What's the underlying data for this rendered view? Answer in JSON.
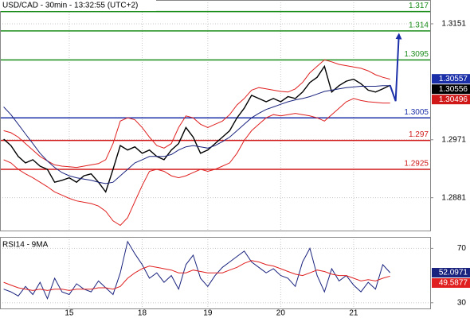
{
  "chart_data": [
    {
      "type": "line",
      "title": "USD/CAD - 30min - 13:32:55 (UTC+2)",
      "categories": [
        null,
        null,
        null,
        null,
        null,
        null,
        null,
        null,
        null,
        "15",
        null,
        null,
        null,
        null,
        null,
        null,
        null,
        null,
        null,
        "18",
        null,
        null,
        null,
        null,
        null,
        null,
        null,
        null,
        "19",
        null,
        null,
        null,
        null,
        null,
        null,
        null,
        null,
        null,
        "20",
        null,
        null,
        null,
        null,
        null,
        null,
        null,
        null,
        null,
        "21",
        null,
        null,
        null,
        null,
        null
      ],
      "ylim": [
        1.283,
        1.3188
      ],
      "yticks": [
        1.3151,
        1.2971,
        1.2881
      ],
      "grid": true,
      "series": [
        {
          "name": "USD/CAD",
          "color": "#000000",
          "values": [
            1.2972,
            1.2962,
            1.2945,
            1.2935,
            1.294,
            1.293,
            1.2925,
            1.2905,
            1.2908,
            1.2912,
            1.2905,
            1.2915,
            1.2918,
            1.2905,
            1.289,
            1.2925,
            1.2962,
            1.2955,
            1.296,
            1.295,
            1.2955,
            1.2945,
            1.294,
            1.2955,
            1.2965,
            1.299,
            1.2975,
            1.295,
            1.2955,
            1.2965,
            1.2975,
            1.2985,
            1.3005,
            1.302,
            1.304,
            1.3035,
            1.303,
            1.3035,
            1.303,
            1.3038,
            1.3035,
            1.3045,
            1.306,
            1.3068,
            1.3085,
            1.3045,
            1.3055,
            1.3062,
            1.3065,
            1.3058,
            1.3048,
            1.3045,
            1.305,
            1.30556
          ]
        },
        {
          "name": "Upper Band",
          "color": "#e02020",
          "values": [
            1.2985,
            1.2982,
            1.2975,
            1.2965,
            1.2955,
            1.2945,
            1.2938,
            1.2932,
            1.293,
            1.2929,
            1.2928,
            1.293,
            1.2932,
            1.2934,
            1.294,
            1.2965,
            1.3,
            1.3005,
            1.3002,
            1.299,
            1.2975,
            1.2962,
            1.2958,
            1.2965,
            1.299,
            1.3008,
            1.3005,
            1.2995,
            1.299,
            1.2995,
            1.3,
            1.301,
            1.3025,
            1.3035,
            1.3048,
            1.3052,
            1.305,
            1.3048,
            1.3046,
            1.3045,
            1.305,
            1.306,
            1.3075,
            1.3085,
            1.3095,
            1.3092,
            1.3088,
            1.3086,
            1.3084,
            1.3082,
            1.3078,
            1.3072,
            1.3068,
            1.3065
          ]
        },
        {
          "name": "Lower Band",
          "color": "#e02020",
          "values": [
            1.294,
            1.2935,
            1.2925,
            1.2918,
            1.2912,
            1.2905,
            1.2898,
            1.289,
            1.2885,
            1.288,
            1.2876,
            1.2874,
            1.2872,
            1.2868,
            1.286,
            1.2845,
            1.2838,
            1.285,
            1.2875,
            1.29,
            1.2922,
            1.2925,
            1.2922,
            1.2915,
            1.2912,
            1.2915,
            1.292,
            1.2925,
            1.2922,
            1.2925,
            1.293,
            1.2935,
            1.295,
            1.297,
            1.2985,
            1.2995,
            1.3005,
            1.301,
            1.3008,
            1.301,
            1.3012,
            1.301,
            1.3008,
            1.3005,
            1.3,
            1.301,
            1.302,
            1.303,
            1.3035,
            1.3032,
            1.303,
            1.3029,
            1.3028,
            1.3028
          ]
        },
        {
          "name": "MA",
          "color": "#1a237e",
          "values": [
            1.3022,
            1.301,
            1.2995,
            1.298,
            1.2965,
            1.295,
            1.2938,
            1.2928,
            1.292,
            1.2915,
            1.2912,
            1.291,
            1.2908,
            1.2905,
            1.2903,
            1.2905,
            1.2915,
            1.2925,
            1.2935,
            1.294,
            1.2945,
            1.2945,
            1.2945,
            1.2948,
            1.2955,
            1.296,
            1.2962,
            1.296,
            1.2958,
            1.2962,
            1.2968,
            1.2975,
            1.2985,
            1.2995,
            1.3005,
            1.3012,
            1.3018,
            1.3022,
            1.3026,
            1.303,
            1.3033,
            1.3035,
            1.3038,
            1.3042,
            1.3046,
            1.3048,
            1.305,
            1.3052,
            1.3053,
            1.3054,
            1.3054,
            1.3054,
            1.3055,
            1.3055
          ]
        }
      ],
      "levels": [
        {
          "value": 1.317,
          "color": "#1a8c1a"
        },
        {
          "value": 1.314,
          "color": "#1a8c1a"
        },
        {
          "value": 1.3095,
          "color": "#1a8c1a"
        },
        {
          "value": 1.3005,
          "color": "#1a2fa8"
        },
        {
          "value": 1.297,
          "color": "#d01818"
        },
        {
          "value": 1.2925,
          "color": "#d01818"
        }
      ],
      "price_markers": [
        {
          "value": 1.30557,
          "color": "#1a2fa8"
        },
        {
          "value": 1.30556,
          "color": "#000000"
        },
        {
          "value": 1.30496,
          "color": "#d01818"
        }
      ],
      "forecast": {
        "color": "#1a2fa8",
        "values": [
          1.30556,
          1.3031,
          1.3132
        ]
      }
    },
    {
      "type": "line",
      "title": "RSI14 - 9MA",
      "ylim": [
        25.8,
        78.4
      ],
      "yticks": [
        70,
        30
      ],
      "series": [
        {
          "name": "RSI14",
          "color": "#1a237e",
          "values": [
            40,
            38,
            35,
            42,
            36,
            45,
            33,
            48,
            38,
            36,
            44,
            40,
            38,
            46,
            41,
            36,
            52,
            75,
            66,
            58,
            48,
            52,
            45,
            50,
            40,
            58,
            65,
            48,
            42,
            50,
            56,
            60,
            64,
            68,
            60,
            56,
            52,
            55,
            50,
            48,
            42,
            60,
            70,
            50,
            38,
            55,
            46,
            50,
            43,
            38,
            45,
            40,
            58,
            52.0971
          ]
        },
        {
          "name": "9MA",
          "color": "#e02020",
          "values": [
            45,
            43,
            41,
            40,
            39,
            40,
            39,
            40,
            40,
            39,
            40,
            40,
            40,
            41,
            41,
            40,
            42,
            48,
            52,
            55,
            57,
            56,
            55,
            54,
            52,
            52,
            54,
            53,
            52,
            52,
            52,
            54,
            56,
            59,
            61,
            60,
            58,
            57,
            55,
            53,
            51,
            50,
            52,
            54,
            53,
            51,
            50,
            50,
            48,
            46,
            47,
            46,
            48,
            49.5877
          ]
        }
      ]
    }
  ]
}
